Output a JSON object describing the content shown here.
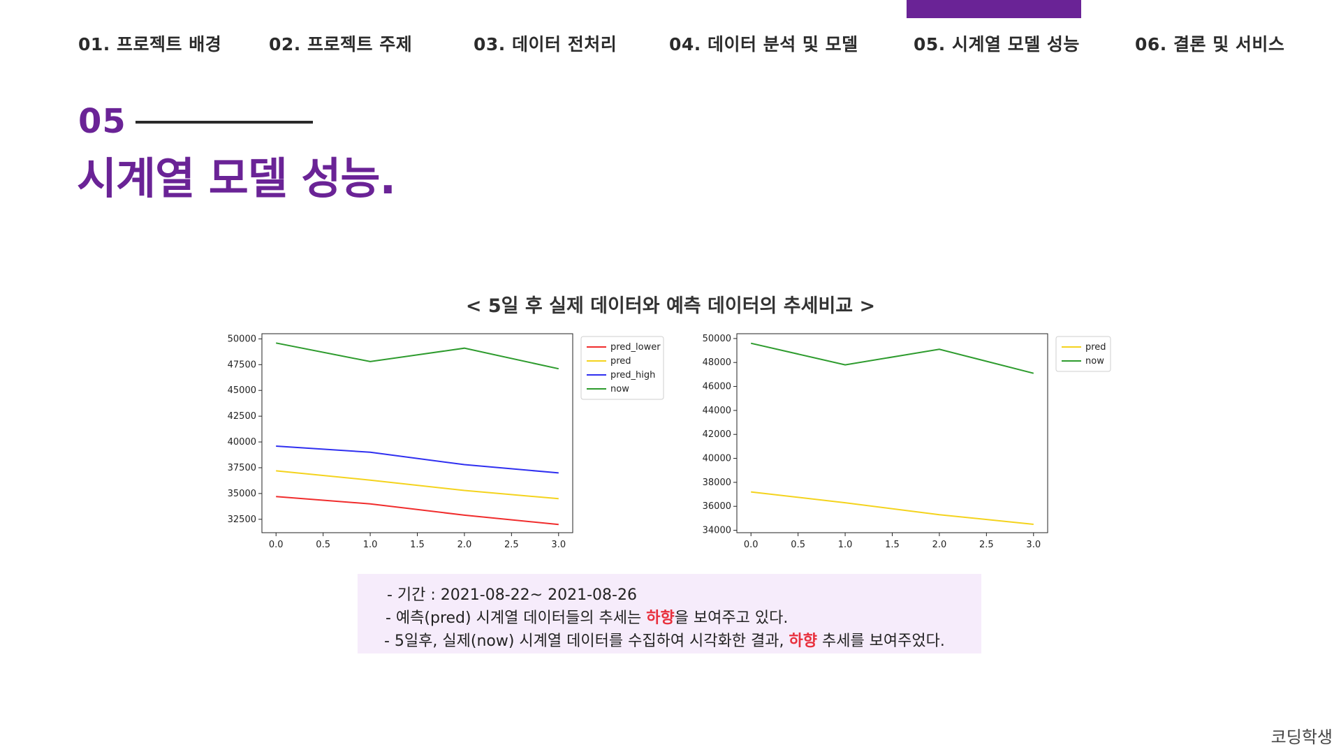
{
  "nav": {
    "items": [
      "01. 프로젝트 배경",
      "02. 프로젝트 주제",
      "03. 데이터 전처리",
      "04. 데이터 분석 및 모델",
      "05. 시계열 모델 성능",
      "06. 결론 및 서비스"
    ],
    "active_index": 4
  },
  "section": {
    "number": "05",
    "title": "시계열 모델 성능."
  },
  "chart_heading": "< 5일 후 실제 데이터와 예측 데이터의 추세비교 >",
  "colors": {
    "accent": "#6a2396",
    "highlight": "#e8303d",
    "note_bg": "#f6ecfb",
    "pred_lower": "#f02c2c",
    "pred": "#f4d31d",
    "pred_high": "#2f2ff0",
    "now": "#2d9b2d"
  },
  "chart_data": [
    {
      "type": "line",
      "x": [
        0,
        1,
        2,
        3
      ],
      "xlim": [
        -0.15,
        3.15
      ],
      "ylim": [
        31200,
        50500
      ],
      "xticks": [
        "0.0",
        "0.5",
        "1.0",
        "1.5",
        "2.0",
        "2.5",
        "3.0"
      ],
      "yticks": [
        "32500",
        "35000",
        "37500",
        "40000",
        "42500",
        "45000",
        "47500",
        "50000"
      ],
      "legend_position": "outside-right",
      "series": [
        {
          "name": "pred_lower",
          "color": "#f02c2c",
          "values": [
            34700,
            34000,
            32900,
            32000
          ]
        },
        {
          "name": "pred",
          "color": "#f4d31d",
          "values": [
            37200,
            36300,
            35300,
            34500
          ]
        },
        {
          "name": "pred_high",
          "color": "#2f2ff0",
          "values": [
            39600,
            39000,
            37800,
            37000
          ]
        },
        {
          "name": "now",
          "color": "#2d9b2d",
          "values": [
            49600,
            47800,
            49100,
            47100
          ]
        }
      ]
    },
    {
      "type": "line",
      "x": [
        0,
        1,
        2,
        3
      ],
      "xlim": [
        -0.15,
        3.15
      ],
      "ylim": [
        33800,
        50400
      ],
      "xticks": [
        "0.0",
        "0.5",
        "1.0",
        "1.5",
        "2.0",
        "2.5",
        "3.0"
      ],
      "yticks": [
        "34000",
        "36000",
        "38000",
        "40000",
        "42000",
        "44000",
        "46000",
        "48000",
        "50000"
      ],
      "legend_position": "outside-right",
      "series": [
        {
          "name": "pred",
          "color": "#f4d31d",
          "values": [
            37200,
            36300,
            35300,
            34500
          ]
        },
        {
          "name": "now",
          "color": "#2d9b2d",
          "values": [
            49600,
            47800,
            49100,
            47100
          ]
        }
      ]
    }
  ],
  "notes": {
    "period": "- 기간 : 2021-08-22~ 2021-08-26",
    "line2_prefix": "- 예측(pred) 시계열 데이터들의 추세는 ",
    "line2_highlight": "하향",
    "line2_suffix": "을 보여주고 있다.",
    "line3_prefix": "- 5일후, 실제(now) 시계열 데이터를 수집하여 시각화한 결과, ",
    "line3_highlight": "하향",
    "line3_suffix": " 추세를 보여주었다."
  },
  "watermark": "코딩학생"
}
